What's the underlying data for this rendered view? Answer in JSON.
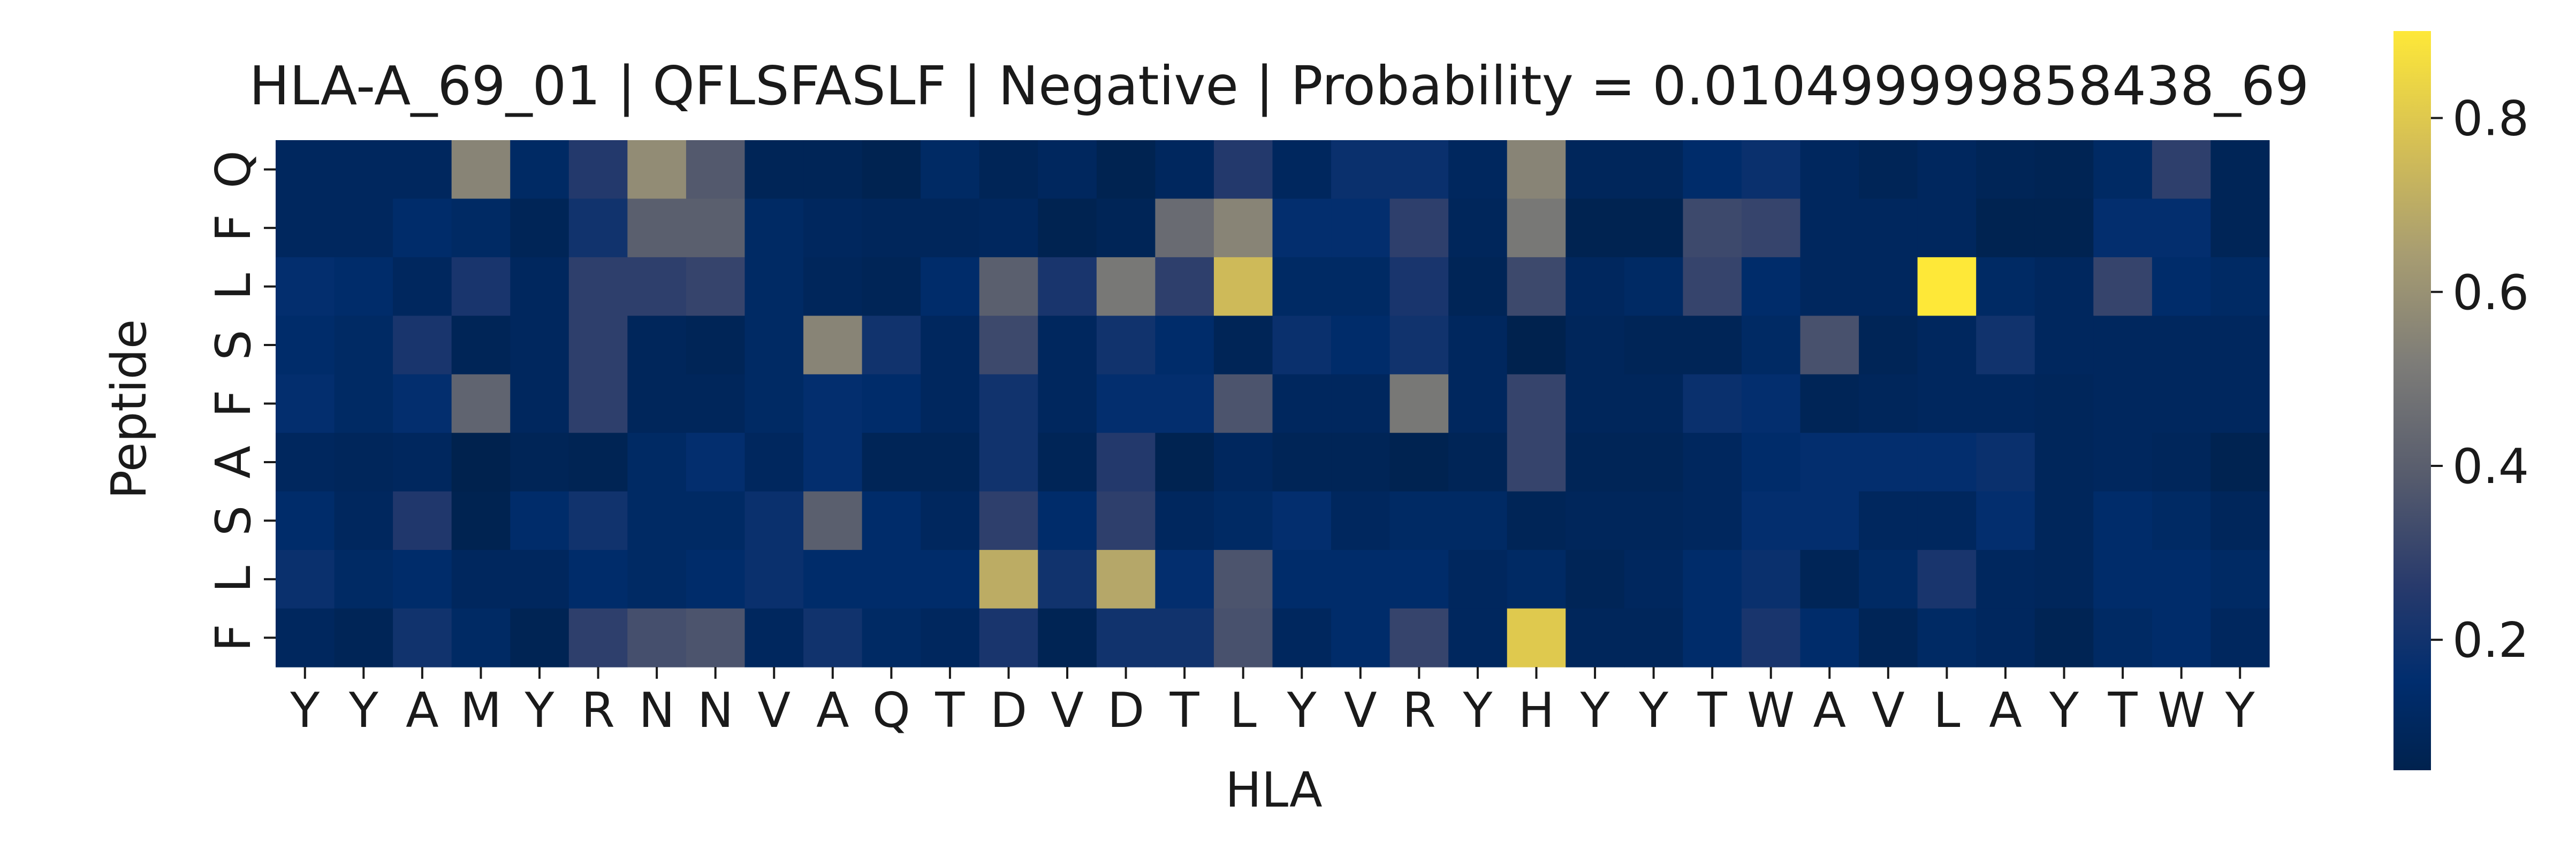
{
  "chart_data": {
    "type": "heatmap",
    "title": "HLA-A_69_01 | QFLSFASLF | Negative | Probability = 0.010499999858438_69",
    "xlabel": "HLA",
    "ylabel": "Peptide",
    "x": [
      "Y",
      "Y",
      "A",
      "M",
      "Y",
      "R",
      "N",
      "N",
      "V",
      "A",
      "Q",
      "T",
      "D",
      "V",
      "D",
      "T",
      "L",
      "Y",
      "V",
      "R",
      "Y",
      "H",
      "Y",
      "Y",
      "T",
      "W",
      "A",
      "V",
      "L",
      "A",
      "Y",
      "T",
      "W",
      "Y"
    ],
    "y": [
      "Q",
      "F",
      "L",
      "S",
      "F",
      "A",
      "S",
      "L",
      "F"
    ],
    "values": [
      [
        0.1,
        0.1,
        0.1,
        0.55,
        0.12,
        0.25,
        0.58,
        0.38,
        0.08,
        0.08,
        0.06,
        0.12,
        0.08,
        0.1,
        0.06,
        0.1,
        0.25,
        0.1,
        0.18,
        0.18,
        0.1,
        0.55,
        0.09,
        0.09,
        0.14,
        0.18,
        0.1,
        0.08,
        0.1,
        0.08,
        0.07,
        0.12,
        0.28,
        0.08
      ],
      [
        0.1,
        0.1,
        0.14,
        0.12,
        0.08,
        0.2,
        0.4,
        0.4,
        0.12,
        0.1,
        0.09,
        0.09,
        0.1,
        0.06,
        0.08,
        0.45,
        0.55,
        0.16,
        0.16,
        0.28,
        0.09,
        0.5,
        0.06,
        0.06,
        0.32,
        0.3,
        0.1,
        0.1,
        0.1,
        0.06,
        0.06,
        0.16,
        0.16,
        0.08
      ],
      [
        0.16,
        0.14,
        0.1,
        0.22,
        0.1,
        0.28,
        0.28,
        0.3,
        0.12,
        0.09,
        0.08,
        0.14,
        0.4,
        0.22,
        0.5,
        0.28,
        0.75,
        0.12,
        0.12,
        0.22,
        0.08,
        0.32,
        0.1,
        0.12,
        0.3,
        0.14,
        0.1,
        0.1,
        0.9,
        0.12,
        0.1,
        0.3,
        0.14,
        0.12
      ],
      [
        0.14,
        0.12,
        0.22,
        0.08,
        0.1,
        0.28,
        0.09,
        0.08,
        0.12,
        0.55,
        0.2,
        0.1,
        0.32,
        0.1,
        0.2,
        0.14,
        0.08,
        0.18,
        0.14,
        0.2,
        0.1,
        0.05,
        0.09,
        0.08,
        0.08,
        0.12,
        0.35,
        0.08,
        0.1,
        0.2,
        0.1,
        0.1,
        0.1,
        0.1
      ],
      [
        0.16,
        0.12,
        0.16,
        0.42,
        0.1,
        0.28,
        0.09,
        0.09,
        0.12,
        0.16,
        0.14,
        0.1,
        0.2,
        0.1,
        0.16,
        0.16,
        0.36,
        0.1,
        0.1,
        0.5,
        0.1,
        0.3,
        0.09,
        0.09,
        0.18,
        0.16,
        0.08,
        0.09,
        0.1,
        0.1,
        0.09,
        0.1,
        0.1,
        0.1
      ],
      [
        0.1,
        0.09,
        0.1,
        0.05,
        0.08,
        0.07,
        0.12,
        0.16,
        0.1,
        0.16,
        0.08,
        0.08,
        0.2,
        0.08,
        0.25,
        0.06,
        0.1,
        0.08,
        0.08,
        0.06,
        0.08,
        0.3,
        0.08,
        0.08,
        0.1,
        0.14,
        0.16,
        0.16,
        0.16,
        0.18,
        0.09,
        0.1,
        0.09,
        0.06
      ],
      [
        0.14,
        0.1,
        0.24,
        0.06,
        0.14,
        0.2,
        0.12,
        0.12,
        0.18,
        0.4,
        0.14,
        0.1,
        0.28,
        0.14,
        0.28,
        0.1,
        0.12,
        0.16,
        0.1,
        0.12,
        0.12,
        0.08,
        0.09,
        0.09,
        0.1,
        0.16,
        0.16,
        0.1,
        0.1,
        0.16,
        0.09,
        0.14,
        0.12,
        0.09
      ],
      [
        0.18,
        0.12,
        0.14,
        0.1,
        0.1,
        0.14,
        0.12,
        0.14,
        0.18,
        0.14,
        0.14,
        0.14,
        0.7,
        0.2,
        0.68,
        0.16,
        0.36,
        0.14,
        0.14,
        0.14,
        0.1,
        0.12,
        0.08,
        0.1,
        0.14,
        0.18,
        0.08,
        0.12,
        0.22,
        0.1,
        0.09,
        0.14,
        0.14,
        0.12
      ],
      [
        0.1,
        0.08,
        0.2,
        0.12,
        0.07,
        0.28,
        0.34,
        0.36,
        0.1,
        0.2,
        0.12,
        0.1,
        0.22,
        0.07,
        0.2,
        0.2,
        0.35,
        0.1,
        0.14,
        0.3,
        0.1,
        0.8,
        0.09,
        0.09,
        0.14,
        0.22,
        0.14,
        0.08,
        0.12,
        0.1,
        0.07,
        0.12,
        0.14,
        0.1
      ]
    ],
    "colormap": "cividis",
    "colorbar": {
      "range": [
        0.05,
        0.9
      ],
      "ticks": [
        0.2,
        0.4,
        0.6,
        0.8
      ],
      "tick_labels": [
        "0.2",
        "0.4",
        "0.6",
        "0.8"
      ]
    },
    "grid": false,
    "legend": "colorbar-right"
  }
}
